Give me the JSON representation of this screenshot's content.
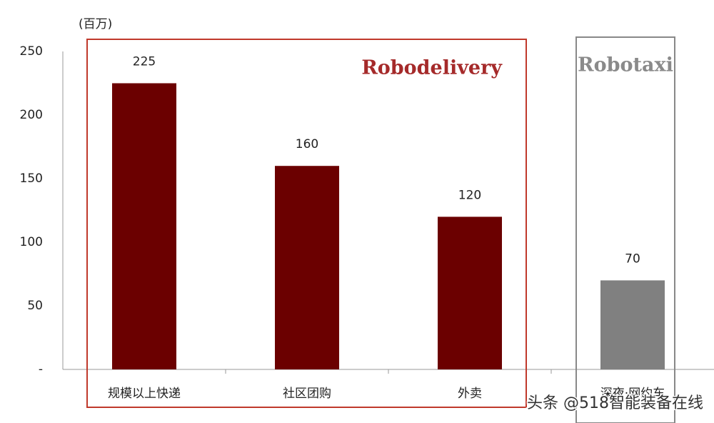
{
  "chart_data": {
    "type": "bar",
    "y_unit": "(百万)",
    "categories": [
      "规模以上快递",
      "社区团购",
      "外卖",
      "深夜·网约车"
    ],
    "values": [
      225,
      160,
      120,
      70
    ],
    "colors": [
      "#6b0000",
      "#6b0000",
      "#6b0000",
      "#808080"
    ],
    "ylim": [
      0,
      250
    ],
    "yticks": [
      {
        "value": 0,
        "label": "-"
      },
      50,
      100,
      150,
      200,
      250
    ],
    "annotations": [
      {
        "text": "Robodelivery",
        "color": "#a52a2a"
      },
      {
        "text": "Robotaxi",
        "color": "#8a8a8a"
      }
    ]
  },
  "watermark": "头条 @518智能装备在线"
}
